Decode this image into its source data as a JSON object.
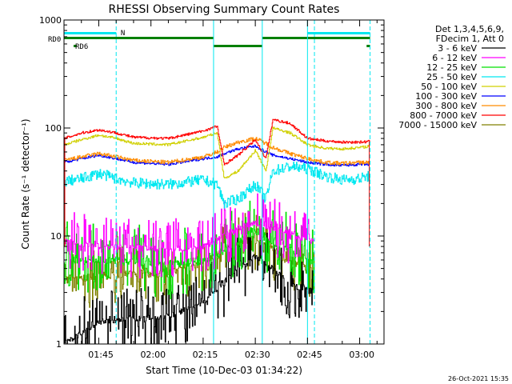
{
  "chart_data": {
    "type": "line",
    "title": "RHESSI Observing Summary Count Rates",
    "xlabel": "Start Time (10-Dec-03 01:34:22)",
    "ylabel": "Count Rate (s⁻¹ detector⁻¹)",
    "y_scale": "log",
    "ylim": [
      1,
      1000
    ],
    "xlim_minutes": [
      0,
      72
    ],
    "x_ticks": [
      {
        "label": "01:45",
        "minute": 10.6
      },
      {
        "label": "02:00",
        "minute": 25.6
      },
      {
        "label": "02:15",
        "minute": 40.6
      },
      {
        "label": "02:30",
        "minute": 55.6
      },
      {
        "label": "02:45",
        "minute": 70.6
      },
      {
        "label": "03:00",
        "minute": 85.6
      }
    ],
    "y_ticks": [
      {
        "label": "1",
        "value": 1
      },
      {
        "label": "10",
        "value": 10
      },
      {
        "label": "100",
        "value": 100
      },
      {
        "label": "1000",
        "value": 1000
      }
    ],
    "legend_header": [
      "Det 1,3,4,5,6,9,",
      "FDecim 1, Att 0"
    ],
    "legend_placement": "right",
    "series": [
      {
        "name": "3 - 6 keV",
        "color": "#000000",
        "points": [
          [
            0,
            1
          ],
          [
            10,
            1.6
          ],
          [
            20,
            1.7
          ],
          [
            30,
            1.8
          ],
          [
            40,
            2.4
          ],
          [
            45,
            3.5
          ],
          [
            50,
            5
          ],
          [
            55,
            6.5
          ],
          [
            60,
            5
          ],
          [
            65,
            3.5
          ],
          [
            70,
            3.2
          ],
          [
            72,
            3
          ]
        ]
      },
      {
        "name": "6 - 12 keV",
        "color": "#ff00ff",
        "points": [
          [
            0,
            9
          ],
          [
            10,
            8
          ],
          [
            20,
            7.8
          ],
          [
            30,
            7.5
          ],
          [
            40,
            8
          ],
          [
            45,
            10
          ],
          [
            50,
            12
          ],
          [
            55,
            13
          ],
          [
            60,
            12
          ],
          [
            65,
            11
          ],
          [
            70,
            9
          ],
          [
            72,
            9
          ]
        ]
      },
      {
        "name": "12 - 25 keV",
        "color": "#00e000",
        "points": [
          [
            0,
            6
          ],
          [
            10,
            6
          ],
          [
            20,
            5.8
          ],
          [
            30,
            5.5
          ],
          [
            40,
            6
          ],
          [
            45,
            7
          ],
          [
            50,
            9
          ],
          [
            55,
            11
          ],
          [
            60,
            9
          ],
          [
            65,
            8
          ],
          [
            70,
            6
          ],
          [
            72,
            6
          ]
        ]
      },
      {
        "name": "25 - 50 keV",
        "color": "#00e8f0",
        "points": [
          [
            0,
            32
          ],
          [
            5,
            34
          ],
          [
            10,
            38
          ],
          [
            15,
            34
          ],
          [
            20,
            31
          ],
          [
            30,
            30
          ],
          [
            40,
            33
          ],
          [
            44,
            30
          ],
          [
            46,
            20
          ],
          [
            50,
            22
          ],
          [
            55,
            30
          ],
          [
            58,
            22
          ],
          [
            60,
            40
          ],
          [
            65,
            44
          ],
          [
            70,
            42
          ],
          [
            75,
            36
          ],
          [
            80,
            33
          ],
          [
            85,
            34
          ],
          [
            88,
            36
          ]
        ]
      },
      {
        "name": "50 - 100 keV",
        "color": "#d0d000",
        "points": [
          [
            0,
            70
          ],
          [
            5,
            78
          ],
          [
            10,
            86
          ],
          [
            15,
            80
          ],
          [
            20,
            72
          ],
          [
            30,
            70
          ],
          [
            40,
            82
          ],
          [
            44,
            90
          ],
          [
            46,
            34
          ],
          [
            50,
            40
          ],
          [
            55,
            62
          ],
          [
            58,
            40
          ],
          [
            60,
            100
          ],
          [
            65,
            90
          ],
          [
            70,
            70
          ],
          [
            75,
            65
          ],
          [
            80,
            64
          ],
          [
            85,
            66
          ],
          [
            88,
            68
          ]
        ]
      },
      {
        "name": "100 - 300 keV",
        "color": "#0000ff",
        "points": [
          [
            0,
            48
          ],
          [
            5,
            52
          ],
          [
            10,
            56
          ],
          [
            15,
            52
          ],
          [
            20,
            48
          ],
          [
            30,
            46
          ],
          [
            40,
            52
          ],
          [
            44,
            54
          ],
          [
            46,
            58
          ],
          [
            50,
            64
          ],
          [
            55,
            68
          ],
          [
            58,
            60
          ],
          [
            60,
            56
          ],
          [
            65,
            52
          ],
          [
            70,
            48
          ],
          [
            75,
            46
          ],
          [
            80,
            45
          ],
          [
            85,
            46
          ],
          [
            88,
            46
          ]
        ]
      },
      {
        "name": "300 - 800 keV",
        "color": "#ff8c00",
        "points": [
          [
            0,
            50
          ],
          [
            5,
            54
          ],
          [
            10,
            58
          ],
          [
            15,
            54
          ],
          [
            20,
            50
          ],
          [
            30,
            48
          ],
          [
            40,
            54
          ],
          [
            44,
            60
          ],
          [
            46,
            66
          ],
          [
            50,
            74
          ],
          [
            55,
            80
          ],
          [
            58,
            72
          ],
          [
            60,
            66
          ],
          [
            65,
            58
          ],
          [
            70,
            52
          ],
          [
            75,
            48
          ],
          [
            80,
            47
          ],
          [
            85,
            48
          ],
          [
            88,
            48
          ]
        ]
      },
      {
        "name": "800 - 7000 keV",
        "color": "#ff0000",
        "points": [
          [
            0,
            80
          ],
          [
            5,
            90
          ],
          [
            10,
            96
          ],
          [
            15,
            90
          ],
          [
            20,
            82
          ],
          [
            30,
            80
          ],
          [
            40,
            94
          ],
          [
            44,
            104
          ],
          [
            46,
            46
          ],
          [
            50,
            56
          ],
          [
            55,
            78
          ],
          [
            58,
            52
          ],
          [
            60,
            120
          ],
          [
            65,
            110
          ],
          [
            70,
            80
          ],
          [
            75,
            76
          ],
          [
            80,
            74
          ],
          [
            85,
            74
          ],
          [
            88,
            75
          ]
        ]
      },
      {
        "name": "7000 - 15000 keV",
        "color": "#808000",
        "points": [
          [
            0,
            4
          ],
          [
            10,
            4.2
          ],
          [
            20,
            4.4
          ],
          [
            30,
            4.6
          ],
          [
            40,
            5.5
          ],
          [
            45,
            7
          ],
          [
            50,
            8.5
          ],
          [
            55,
            9
          ],
          [
            60,
            7.5
          ],
          [
            65,
            6
          ],
          [
            70,
            5
          ],
          [
            72,
            5
          ]
        ]
      }
    ],
    "annotations": [
      {
        "text": "N",
        "color": "#00e8f0"
      },
      {
        "text": "RD0",
        "color": "#008000"
      },
      {
        "text": "RD6",
        "color": "#008000"
      }
    ],
    "footer_timestamp": "26-Oct-2021 15:35"
  }
}
